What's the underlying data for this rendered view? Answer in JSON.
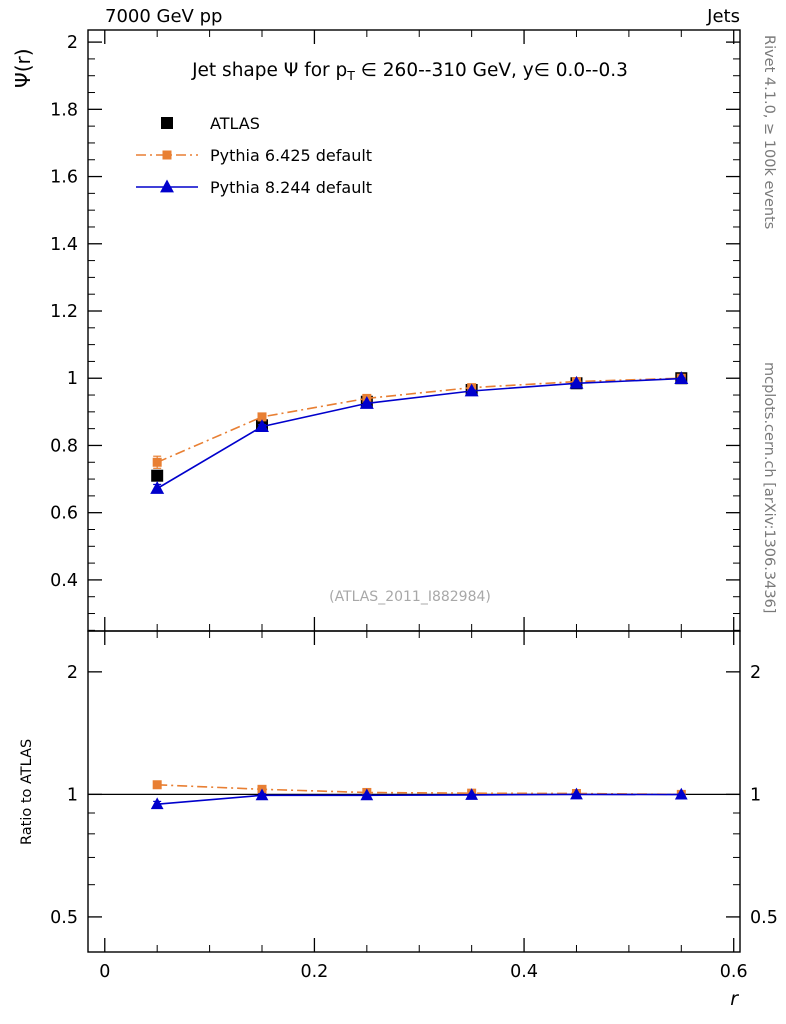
{
  "header": {
    "left": "7000 GeV pp",
    "right": "Jets"
  },
  "side_notes": {
    "top": "Rivet 4.1.0, ≥ 100k events",
    "bottom": "mcplots.cern.ch [arXiv:1306.3436]"
  },
  "watermark": "(ATLAS_2011_I882984)",
  "colors": {
    "atlas": "#000000",
    "pythia6": "#e87f33",
    "pythia8": "#0000cc",
    "reference": "#000000"
  },
  "chart_data": [
    {
      "type": "scatter",
      "panel": "main",
      "title": "Jet shape Ψ for pT ∈ 260--310 GeV, y∈ 0.0--0.3",
      "title_parts": [
        "Jet shape Ψ for p",
        "T",
        " ∈ 260--310 GeV, y∈ 0.0--0.3"
      ],
      "xlabel": "r",
      "ylabel": "Ψ(r)",
      "xlim": [
        -0.016,
        0.606
      ],
      "ylim": [
        0.248,
        2.036
      ],
      "xticks": [
        0,
        0.2,
        0.4,
        0.6
      ],
      "yticks": [
        0.4,
        0.6,
        0.8,
        1,
        1.2,
        1.4,
        1.6,
        1.8,
        2
      ],
      "grid": false,
      "legend_position": "top-left",
      "x": [
        0.05,
        0.15,
        0.25,
        0.35,
        0.45,
        0.55
      ],
      "series": [
        {
          "name": "ATLAS",
          "color": "#000000",
          "marker": "square",
          "line": "none",
          "values": [
            0.71,
            0.86,
            0.93,
            0.965,
            0.985,
            1.0
          ],
          "errors": [
            0.015,
            0.008,
            0.006,
            0.005,
            0.004,
            0.003
          ]
        },
        {
          "name": "Pythia 6.425 default",
          "color": "#e87f33",
          "marker": "square",
          "line": "dashdot",
          "values": [
            0.75,
            0.885,
            0.94,
            0.972,
            0.99,
            1.0
          ],
          "errors": [
            0.018,
            0.007,
            0.005,
            0.004,
            0.003,
            0.002
          ]
        },
        {
          "name": "Pythia 8.244 default",
          "color": "#0000cc",
          "marker": "triangle",
          "line": "solid",
          "values": [
            0.672,
            0.856,
            0.925,
            0.962,
            0.985,
            0.999
          ],
          "errors": [
            0.012,
            0.006,
            0.004,
            0.003,
            0.002,
            0.002
          ]
        }
      ]
    },
    {
      "type": "line",
      "panel": "ratio",
      "ylabel": "Ratio to ATLAS",
      "yscale": "log",
      "ylim": [
        0.41,
        2.52
      ],
      "yticks": [
        0.5,
        1,
        2
      ],
      "yticks_minor": [
        0.6,
        0.7,
        0.8,
        0.9
      ],
      "reference_line": 1,
      "x": [
        0.05,
        0.15,
        0.25,
        0.35,
        0.45,
        0.55
      ],
      "series": [
        {
          "name": "Pythia 6.425 default",
          "color": "#e87f33",
          "marker": "square",
          "line": "dashdot",
          "values": [
            1.056,
            1.029,
            1.011,
            1.007,
            1.005,
            1.0
          ],
          "errors": [
            0.02,
            0.01,
            0.007,
            0.005,
            0.004,
            0.003
          ]
        },
        {
          "name": "Pythia 8.244 default",
          "color": "#0000cc",
          "marker": "triangle",
          "line": "solid",
          "values": [
            0.946,
            0.995,
            0.995,
            0.997,
            1.0,
            0.999
          ],
          "errors": [
            0.015,
            0.008,
            0.005,
            0.004,
            0.003,
            0.002
          ]
        }
      ]
    }
  ]
}
